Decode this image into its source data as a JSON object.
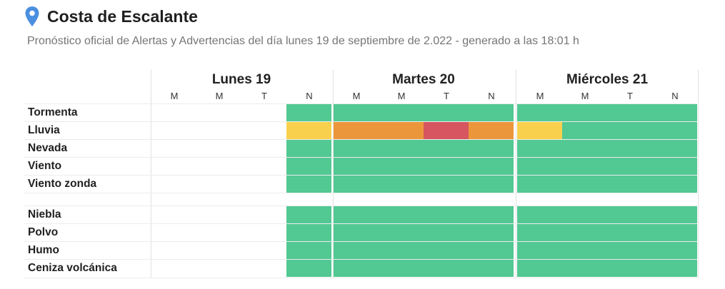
{
  "header": {
    "icon": "location-pin-icon",
    "title": "Costa de Escalante",
    "subtitle": "Pronóstico oficial de Alertas y Advertencias del día lunes 19 de septiembre de 2.022 - generado a las 18:01 h"
  },
  "colors": {
    "green": "#52c893",
    "yellow": "#f9d04d",
    "orange": "#ec963c",
    "red": "#d65560"
  },
  "days": [
    {
      "label": "Lunes 19",
      "periods": [
        "M",
        "M",
        "T",
        "N"
      ]
    },
    {
      "label": "Martes 20",
      "periods": [
        "M",
        "M",
        "T",
        "N"
      ]
    },
    {
      "label": "Miércoles 21",
      "periods": [
        "M",
        "M",
        "T",
        "N"
      ]
    }
  ],
  "rows": [
    {
      "label": "Tormenta",
      "levels": [
        null,
        null,
        null,
        "green",
        "green",
        "green",
        "green",
        "green",
        "green",
        "green",
        "green",
        "green"
      ]
    },
    {
      "label": "Lluvia",
      "levels": [
        null,
        null,
        null,
        "yellow",
        "orange",
        "orange",
        "red",
        "orange",
        "yellow",
        "green",
        "green",
        "green"
      ]
    },
    {
      "label": "Nevada",
      "levels": [
        null,
        null,
        null,
        "green",
        "green",
        "green",
        "green",
        "green",
        "green",
        "green",
        "green",
        "green"
      ]
    },
    {
      "label": "Viento",
      "levels": [
        null,
        null,
        null,
        "green",
        "green",
        "green",
        "green",
        "green",
        "green",
        "green",
        "green",
        "green"
      ]
    },
    {
      "label": "Viento zonda",
      "levels": [
        null,
        null,
        null,
        "green",
        "green",
        "green",
        "green",
        "green",
        "green",
        "green",
        "green",
        "green"
      ]
    },
    {
      "label": "Niebla",
      "levels": [
        null,
        null,
        null,
        "green",
        "green",
        "green",
        "green",
        "green",
        "green",
        "green",
        "green",
        "green"
      ]
    },
    {
      "label": "Polvo",
      "levels": [
        null,
        null,
        null,
        "green",
        "green",
        "green",
        "green",
        "green",
        "green",
        "green",
        "green",
        "green"
      ]
    },
    {
      "label": "Humo",
      "levels": [
        null,
        null,
        null,
        "green",
        "green",
        "green",
        "green",
        "green",
        "green",
        "green",
        "green",
        "green"
      ]
    },
    {
      "label": "Ceniza volcánica",
      "levels": [
        null,
        null,
        null,
        "green",
        "green",
        "green",
        "green",
        "green",
        "green",
        "green",
        "green",
        "green"
      ]
    }
  ]
}
